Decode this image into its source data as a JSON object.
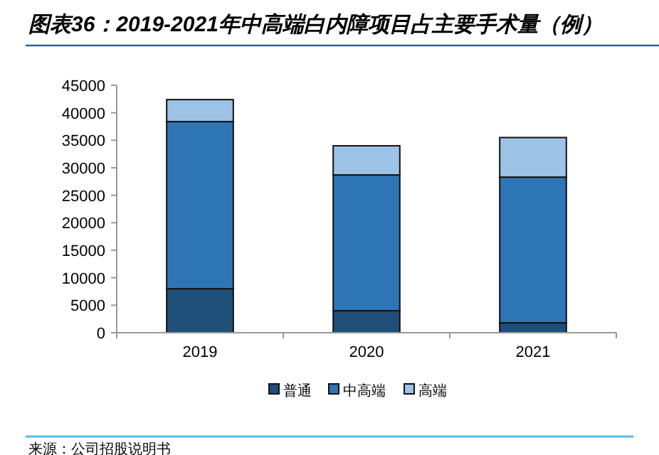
{
  "chart_data": {
    "type": "bar",
    "title": "图表36：2019-2021年中高端白内障项目占主要手术量（例）",
    "stacked": true,
    "categories": [
      "2019",
      "2020",
      "2021"
    ],
    "series": [
      {
        "name": "普通",
        "color": "#1f4e79",
        "values": [
          8000,
          4000,
          1800
        ]
      },
      {
        "name": "中高端",
        "color": "#2e75b6",
        "values": [
          30400,
          24700,
          26500
        ]
      },
      {
        "name": "高端",
        "color": "#9dc3e6",
        "values": [
          4000,
          5300,
          7200
        ]
      }
    ],
    "ylim": [
      0,
      45000
    ],
    "yticks": [
      0,
      5000,
      10000,
      15000,
      20000,
      25000,
      30000,
      35000,
      40000,
      45000
    ],
    "grid": false,
    "legend": "bottom",
    "annotations": [
      "来源：公司招股说明书"
    ]
  }
}
